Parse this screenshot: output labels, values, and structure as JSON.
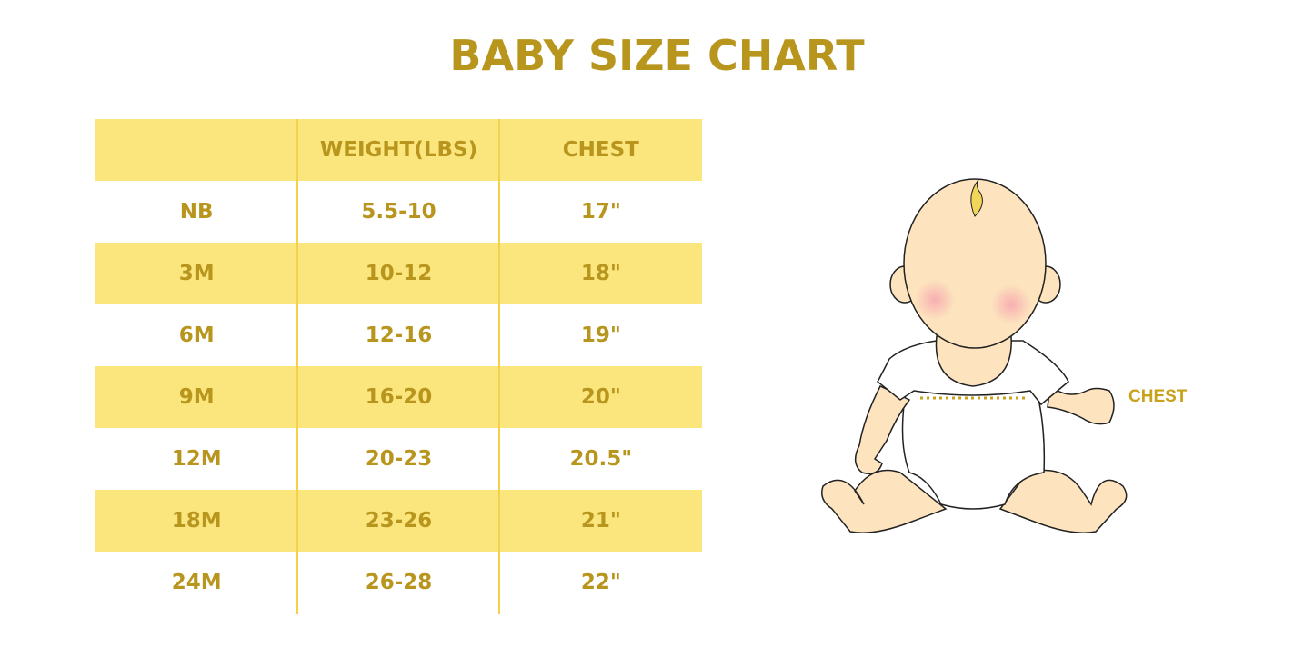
{
  "title": "BABY SIZE CHART",
  "table": {
    "headers": [
      "",
      "WEIGHT(LBS)",
      "CHEST"
    ],
    "rows": [
      [
        "NB",
        "5.5-10",
        "17\""
      ],
      [
        "3M",
        "10-12",
        "18\""
      ],
      [
        "6M",
        "12-16",
        "19\""
      ],
      [
        "9M",
        "16-20",
        "20\""
      ],
      [
        "12M",
        "20-23",
        "20.5\""
      ],
      [
        "18M",
        "23-26",
        "21\""
      ],
      [
        "24M",
        "26-28",
        "22\""
      ]
    ]
  },
  "illustration": {
    "label": "CHEST"
  },
  "colors": {
    "text": "#B8961E",
    "band": "#FBE57D",
    "skin": "#FDE3BE"
  }
}
